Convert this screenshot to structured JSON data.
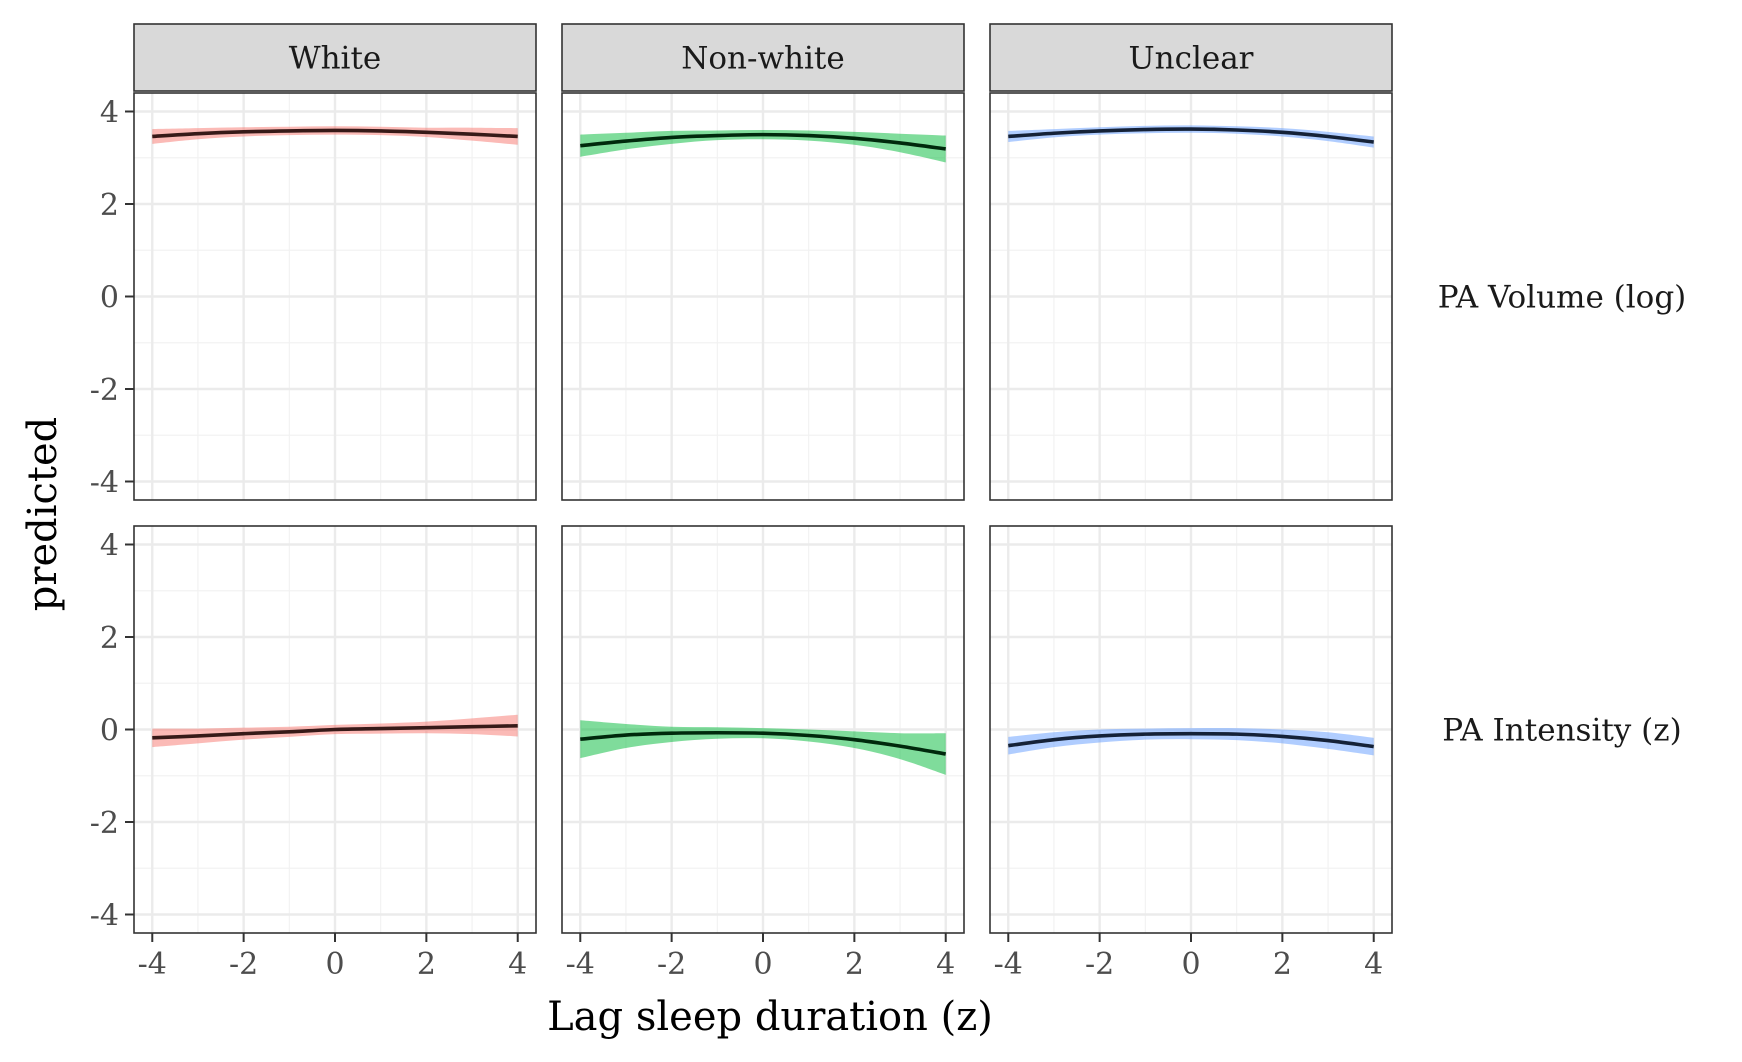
{
  "chart_data": {
    "type": "line",
    "title": "",
    "xlabel": "Lag sleep duration (z)",
    "ylabel": "predicted",
    "xlim": [
      -4.4,
      4.4
    ],
    "ylim": [
      -4.4,
      4.4
    ],
    "x_ticks": [
      -4,
      -2,
      0,
      2,
      4
    ],
    "y_ticks": [
      -4,
      -2,
      0,
      2,
      4
    ],
    "x_tick_labels": [
      "-4",
      "-2",
      "0",
      "2",
      "4"
    ],
    "y_tick_labels": [
      "-4",
      "-2",
      "0",
      "2",
      "4"
    ],
    "grid": true,
    "x": [
      -4,
      -3,
      -2,
      -1,
      0,
      1,
      2,
      3,
      4
    ],
    "facet_columns": [
      {
        "label": "White",
        "color": "#F8766D"
      },
      {
        "label": "Non-white",
        "color": "#00BA38"
      },
      {
        "label": "Unclear",
        "color": "#619CFF"
      }
    ],
    "facet_rows": [
      {
        "label": "PA Volume (log)"
      },
      {
        "label": "PA Intensity (z)"
      }
    ],
    "panels": [
      {
        "row": 0,
        "col": 0,
        "y": [
          3.46,
          3.52,
          3.56,
          3.58,
          3.59,
          3.58,
          3.55,
          3.51,
          3.46
        ],
        "lower": [
          3.3,
          3.4,
          3.46,
          3.49,
          3.5,
          3.49,
          3.45,
          3.37,
          3.28
        ],
        "upper": [
          3.62,
          3.64,
          3.66,
          3.67,
          3.68,
          3.67,
          3.65,
          3.65,
          3.64
        ]
      },
      {
        "row": 0,
        "col": 1,
        "y": [
          3.26,
          3.36,
          3.44,
          3.48,
          3.5,
          3.48,
          3.42,
          3.32,
          3.19
        ],
        "lower": [
          3.02,
          3.18,
          3.3,
          3.38,
          3.4,
          3.37,
          3.28,
          3.12,
          2.9
        ],
        "upper": [
          3.5,
          3.54,
          3.58,
          3.59,
          3.6,
          3.59,
          3.56,
          3.52,
          3.48
        ]
      },
      {
        "row": 0,
        "col": 2,
        "y": [
          3.46,
          3.53,
          3.58,
          3.61,
          3.62,
          3.6,
          3.55,
          3.46,
          3.34
        ],
        "lower": [
          3.34,
          3.44,
          3.5,
          3.53,
          3.54,
          3.52,
          3.46,
          3.36,
          3.22
        ],
        "upper": [
          3.58,
          3.62,
          3.66,
          3.69,
          3.7,
          3.68,
          3.64,
          3.56,
          3.46
        ]
      },
      {
        "row": 1,
        "col": 0,
        "y": [
          -0.18,
          -0.14,
          -0.09,
          -0.05,
          0.0,
          0.02,
          0.04,
          0.06,
          0.08
        ],
        "lower": [
          -0.38,
          -0.3,
          -0.22,
          -0.16,
          -0.1,
          -0.09,
          -0.08,
          -0.1,
          -0.15
        ],
        "upper": [
          0.02,
          0.02,
          0.04,
          0.06,
          0.1,
          0.13,
          0.17,
          0.24,
          0.32
        ]
      },
      {
        "row": 1,
        "col": 1,
        "y": [
          -0.21,
          -0.12,
          -0.08,
          -0.07,
          -0.08,
          -0.13,
          -0.22,
          -0.36,
          -0.53
        ],
        "lower": [
          -0.62,
          -0.4,
          -0.27,
          -0.2,
          -0.19,
          -0.26,
          -0.4,
          -0.64,
          -0.98
        ],
        "upper": [
          0.2,
          0.12,
          0.06,
          0.05,
          0.03,
          0.0,
          -0.04,
          -0.08,
          -0.08
        ]
      },
      {
        "row": 1,
        "col": 2,
        "y": [
          -0.35,
          -0.22,
          -0.14,
          -0.1,
          -0.09,
          -0.1,
          -0.15,
          -0.24,
          -0.37
        ],
        "lower": [
          -0.54,
          -0.38,
          -0.28,
          -0.22,
          -0.21,
          -0.23,
          -0.3,
          -0.42,
          -0.56
        ],
        "upper": [
          -0.16,
          -0.06,
          0.0,
          0.02,
          0.03,
          0.03,
          0.0,
          -0.06,
          -0.18
        ]
      }
    ]
  }
}
